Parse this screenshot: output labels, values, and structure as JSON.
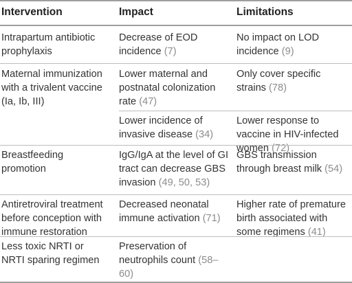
{
  "headers": {
    "intervention": "Intervention",
    "impact": "Impact",
    "limitations": "Limitations"
  },
  "rows": [
    {
      "intervention": "Intrapartum antibiotic prophylaxis",
      "impact_text": "Decrease of EOD incidence",
      "impact_refs": "(7)",
      "limitation_text": "No impact on LOD incidence",
      "limitation_refs": "(9)"
    },
    {
      "intervention": "Maternal immunization with a trivalent vaccine (Ia, Ib, III)",
      "impact_text": "Lower maternal and postnatal colonization rate",
      "impact_refs": "(47)",
      "limitation_text": "Only cover specific strains",
      "limitation_refs": "(78)"
    },
    {
      "intervention": "",
      "impact_text": "Lower incidence of invasive disease",
      "impact_refs": "(34)",
      "limitation_text": "Lower response to vaccine in HIV-infected women",
      "limitation_refs": "(72)"
    },
    {
      "intervention": "Breastfeeding promotion",
      "impact_text": "IgG/IgA at the level of GI tract can decrease GBS invasion",
      "impact_refs": "(49, 50, 53)",
      "limitation_text": "GBS transmission through breast milk",
      "limitation_refs": "(54)"
    },
    {
      "intervention": "Antiretroviral treatment before conception with immune restoration",
      "impact_text": "Decreased neonatal immune activation",
      "impact_refs": "(71)",
      "limitation_text": "Higher rate of premature birth associated with some regimens",
      "limitation_refs": "(41)"
    },
    {
      "intervention": "Less toxic NRTI or NRTI sparing regimen",
      "impact_text": "Preservation of neutrophils count",
      "impact_refs": "(58–60)",
      "limitation_text": "",
      "limitation_refs": ""
    }
  ]
}
